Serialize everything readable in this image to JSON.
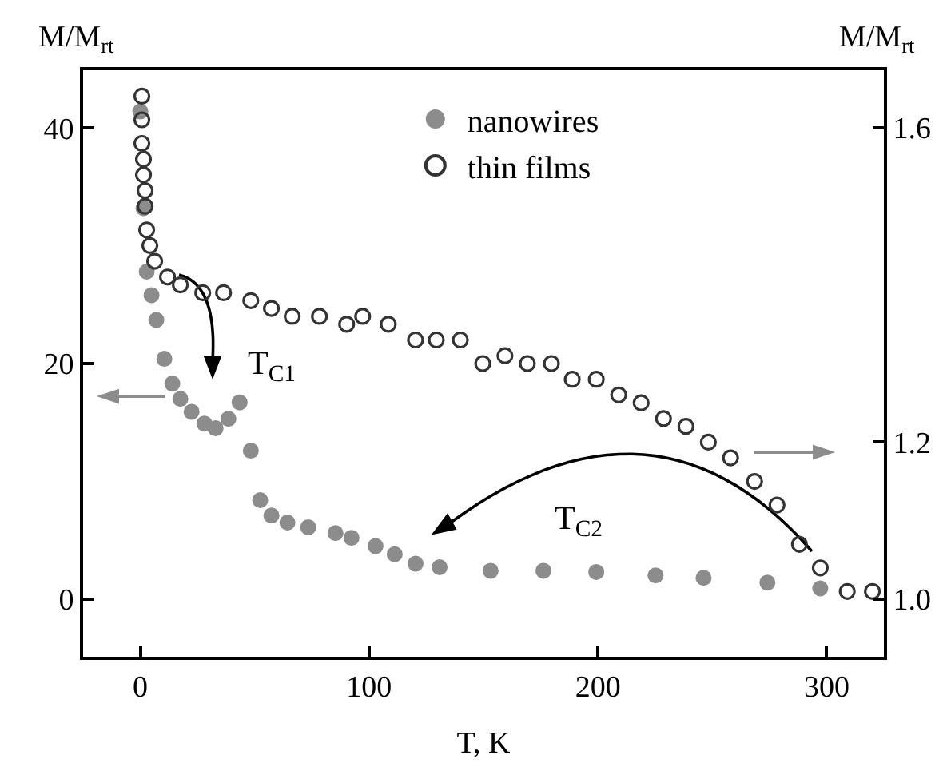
{
  "chart_data": {
    "type": "scatter",
    "xlabel": "T, K",
    "ylabel": "M/M$_{rt}$",
    "y2label": "M/M$_{rt}$",
    "xlim": [
      -25,
      325
    ],
    "xticks": [
      0,
      100,
      200,
      300
    ],
    "ylim": [
      -4.9,
      44.9
    ],
    "yticks": [
      0,
      20,
      40
    ],
    "y2lim": [
      0.927,
      1.673
    ],
    "y2ticks": [
      {
        "value": 1.0,
        "label": "1.0"
      },
      {
        "value": 1.2,
        "label": "1.2"
      },
      {
        "value": 1.6,
        "label": "1.6"
      }
    ],
    "grid": false,
    "legend": "top",
    "series": [
      {
        "name": "nanowires",
        "color": "#8c8c8c",
        "marker": "circle",
        "axis": "y",
        "x": [
          0,
          1.4,
          2.8,
          4.9,
          7,
          10.5,
          14,
          17.5,
          22.4,
          28,
          32.9,
          38.5,
          43.4,
          48.3,
          52.4,
          57.3,
          64.3,
          73.4,
          85.3,
          92.3,
          102.8,
          111.2,
          120.3,
          130.8,
          153.1,
          176.2,
          199.3,
          225.2,
          246.2,
          274.1,
          297.2
        ],
        "values": [
          41.4,
          33.2,
          27.8,
          25.8,
          23.7,
          20.4,
          18.3,
          17.0,
          15.9,
          14.9,
          14.5,
          15.3,
          16.7,
          12.6,
          8.4,
          7.1,
          6.5,
          6.1,
          5.6,
          5.2,
          4.5,
          3.8,
          3.0,
          2.7,
          2.4,
          2.4,
          2.3,
          2.0,
          1.8,
          1.4,
          0.9
        ]
      },
      {
        "name": "thin films",
        "color": "#333333",
        "marker": "circle-open",
        "axis": "y2",
        "x": [
          0.7,
          0.7,
          0.7,
          1.4,
          1.4,
          2.1,
          2.1,
          2.8,
          4.2,
          6.3,
          11.9,
          17.5,
          27.3,
          36.4,
          48.3,
          57.3,
          66.4,
          78.3,
          90.2,
          97.2,
          108.4,
          120.3,
          129.4,
          139.9,
          149.7,
          159.4,
          169.2,
          179.7,
          188.8,
          199.3,
          209.1,
          218.9,
          228.7,
          238.5,
          248.3,
          258,
          268.5,
          278.3,
          288.1,
          297.2,
          309,
          320
        ],
        "values": [
          1.64,
          1.61,
          1.58,
          1.56,
          1.54,
          1.52,
          1.5,
          1.47,
          1.45,
          1.43,
          1.41,
          1.4,
          1.39,
          1.39,
          1.38,
          1.37,
          1.36,
          1.36,
          1.35,
          1.36,
          1.35,
          1.33,
          1.33,
          1.33,
          1.3,
          1.31,
          1.3,
          1.3,
          1.28,
          1.28,
          1.26,
          1.25,
          1.23,
          1.22,
          1.2,
          1.18,
          1.15,
          1.12,
          1.07,
          1.04,
          1.01,
          1.01
        ]
      }
    ],
    "annotations": [
      "T$_{C1}$",
      "T$_{C2}$"
    ]
  }
}
